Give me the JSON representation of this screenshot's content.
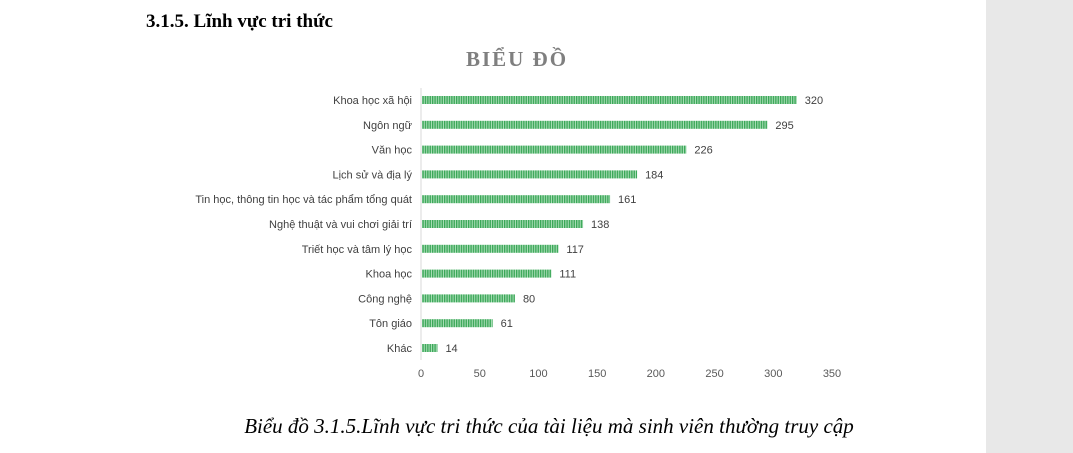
{
  "document": {
    "section_heading": "3.1.5. Lĩnh vực tri thức",
    "caption": "Biểu đồ 3.1.5.Lĩnh vực tri thức của tài liệu mà sinh viên thường truy cập"
  },
  "chart_data": {
    "type": "bar",
    "orientation": "horizontal",
    "title": "BIỂU ĐỒ",
    "xlabel": "",
    "ylabel": "",
    "categories": [
      "Khoa học xã hội",
      "Ngôn ngữ",
      "Văn học",
      "Lịch sử và địa lý",
      "Tin học, thông tin học và tác phẩm tổng quát",
      "Nghệ thuật và vui chơi giải trí",
      "Triết học và tâm lý học",
      "Khoa học",
      "Công nghệ",
      "Tôn giáo",
      "Khác"
    ],
    "values": [
      320,
      295,
      226,
      184,
      161,
      138,
      117,
      111,
      80,
      61,
      14
    ],
    "xlim": [
      0,
      350
    ],
    "xticks": [
      0,
      50,
      100,
      150,
      200,
      250,
      300,
      350
    ],
    "data_labels": true,
    "grid": false,
    "legend": "none",
    "bar_color": "#3aa757",
    "bar_stripe_color": "#a8ddb6"
  }
}
